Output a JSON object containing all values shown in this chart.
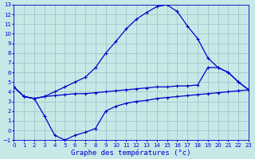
{
  "title": "Graphe des températures (°c)",
  "bg_color": "#c8e8e8",
  "grid_color": "#9ec8c8",
  "line_color": "#0000cc",
  "xlim": [
    0,
    23
  ],
  "ylim": [
    -1,
    13
  ],
  "xticks": [
    0,
    1,
    2,
    3,
    4,
    5,
    6,
    7,
    8,
    9,
    10,
    11,
    12,
    13,
    14,
    15,
    16,
    17,
    18,
    19,
    20,
    21,
    22,
    23
  ],
  "yticks": [
    -1,
    0,
    1,
    2,
    3,
    4,
    5,
    6,
    7,
    8,
    9,
    10,
    11,
    12,
    13
  ],
  "curve_upper": [
    4.5,
    3.5,
    3.3,
    3.5,
    4.0,
    4.5,
    5.0,
    5.5,
    6.5,
    8.0,
    9.2,
    10.5,
    11.5,
    12.2,
    12.8,
    13.0,
    12.3,
    10.8,
    9.5,
    7.5,
    6.5,
    6.0,
    5.0,
    4.2
  ],
  "curve_lower": [
    4.5,
    3.5,
    3.3,
    3.5,
    3.6,
    3.7,
    3.8,
    3.8,
    3.9,
    4.0,
    4.1,
    4.2,
    4.3,
    4.4,
    4.5,
    4.5,
    4.6,
    4.6,
    4.7,
    6.5,
    6.5,
    6.0,
    5.0,
    4.2
  ],
  "curve_bottom": [
    4.5,
    3.5,
    3.3,
    1.5,
    -0.5,
    -1.0,
    -0.5,
    -0.2,
    0.2,
    2.0,
    2.5,
    2.8,
    3.0,
    3.1,
    3.3,
    3.4,
    3.5,
    3.6,
    3.7,
    3.8,
    3.9,
    4.0,
    4.1,
    4.2
  ]
}
